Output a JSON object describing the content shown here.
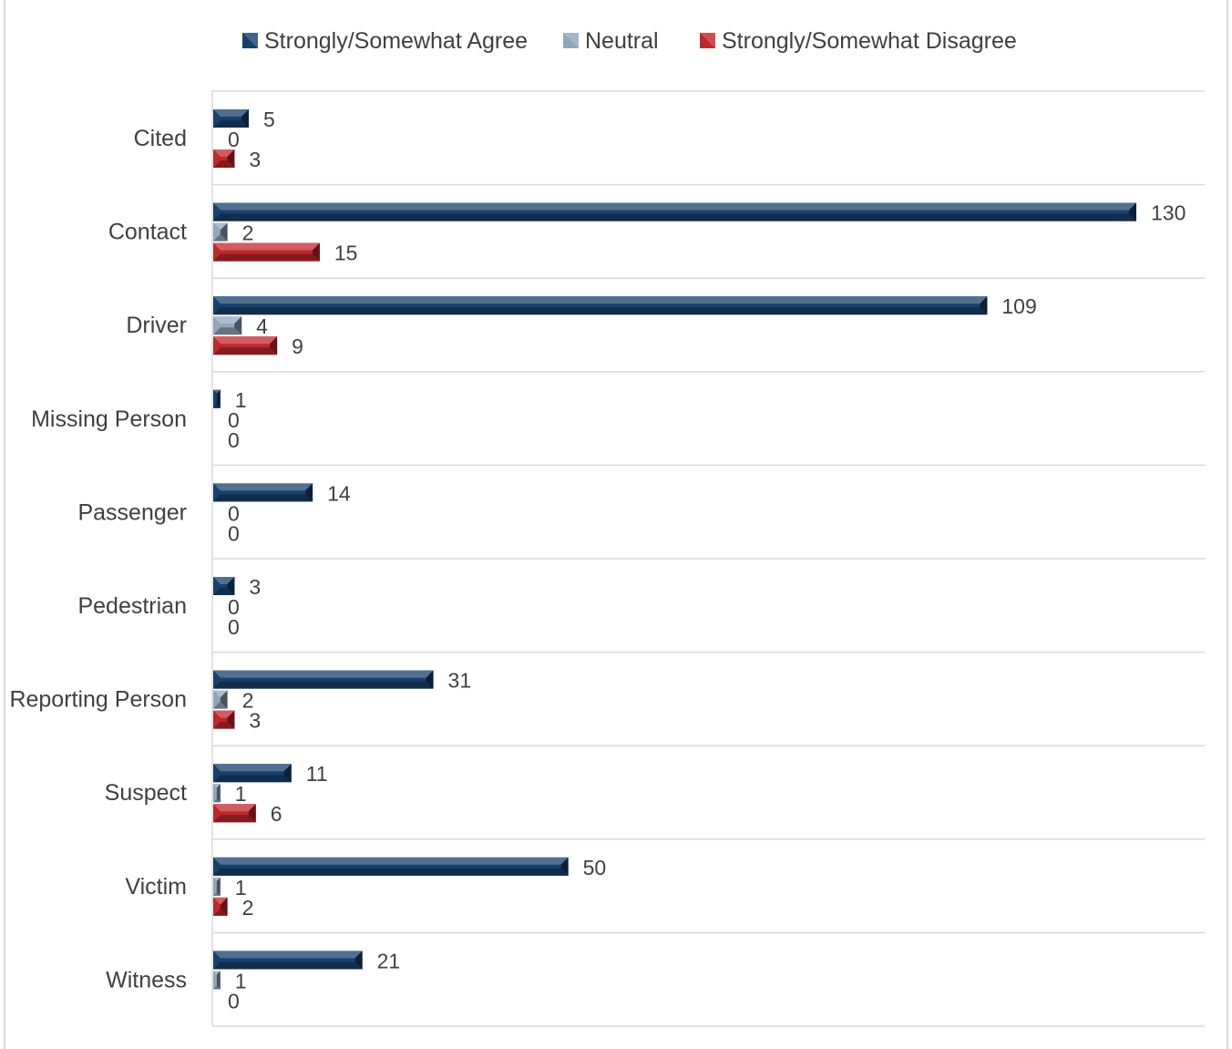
{
  "chart_data": {
    "type": "bar",
    "orientation": "horizontal",
    "categories": [
      "Cited",
      "Contact",
      "Driver",
      "Missing Person",
      "Passenger",
      "Pedestrian",
      "Reporting Person",
      "Suspect",
      "Victim",
      "Witness"
    ],
    "series": [
      {
        "name": "Strongly/Somewhat Agree",
        "color": "#17406b",
        "values": [
          5,
          130,
          109,
          1,
          14,
          3,
          31,
          11,
          50,
          21
        ]
      },
      {
        "name": "Neutral",
        "color": "#8fa6bb",
        "values": [
          0,
          2,
          4,
          0,
          0,
          0,
          2,
          1,
          1,
          1
        ]
      },
      {
        "name": "Strongly/Somewhat Disagree",
        "color": "#c0272d",
        "values": [
          3,
          15,
          9,
          0,
          0,
          0,
          3,
          6,
          2,
          0
        ]
      }
    ],
    "xlim": [
      0,
      140
    ],
    "legend_position": "top",
    "grid": "horizontal separators between categories",
    "data_labels": true,
    "style": "3D bevel bars"
  }
}
